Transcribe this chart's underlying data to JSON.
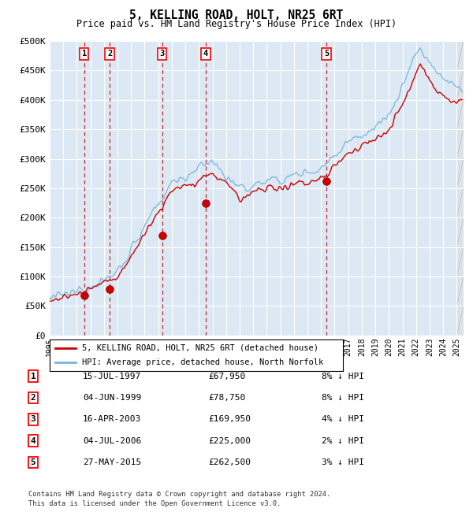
{
  "title": "5, KELLING ROAD, HOLT, NR25 6RT",
  "subtitle": "Price paid vs. HM Land Registry's House Price Index (HPI)",
  "hpi_label": "HPI: Average price, detached house, North Norfolk",
  "property_label": "5, KELLING ROAD, HOLT, NR25 6RT (detached house)",
  "footer_line1": "Contains HM Land Registry data © Crown copyright and database right 2024.",
  "footer_line2": "This data is licensed under the Open Government Licence v3.0.",
  "transactions": [
    {
      "num": 1,
      "date": "15-JUL-1997",
      "price": 67950,
      "year": 1997.54,
      "hpi_pct": "8% ↓ HPI"
    },
    {
      "num": 2,
      "date": "04-JUN-1999",
      "price": 78750,
      "year": 1999.42,
      "hpi_pct": "8% ↓ HPI"
    },
    {
      "num": 3,
      "date": "16-APR-2003",
      "price": 169950,
      "year": 2003.29,
      "hpi_pct": "4% ↓ HPI"
    },
    {
      "num": 4,
      "date": "04-JUL-2006",
      "price": 225000,
      "year": 2006.51,
      "hpi_pct": "2% ↓ HPI"
    },
    {
      "num": 5,
      "date": "27-MAY-2015",
      "price": 262500,
      "year": 2015.4,
      "hpi_pct": "3% ↓ HPI"
    }
  ],
  "hpi_color": "#7ab4d8",
  "property_color": "#cc0000",
  "dashed_line_color": "#cc0000",
  "background_chart": "#dce9f5",
  "background_fig": "#ffffff",
  "grid_color": "#ffffff",
  "ylim": [
    0,
    500000
  ],
  "xlim_start": 1995.0,
  "xlim_end": 2025.5,
  "yticks": [
    0,
    50000,
    100000,
    150000,
    200000,
    250000,
    300000,
    350000,
    400000,
    450000,
    500000
  ],
  "xticks": [
    1995,
    1996,
    1997,
    1998,
    1999,
    2000,
    2001,
    2002,
    2003,
    2004,
    2005,
    2006,
    2007,
    2008,
    2009,
    2010,
    2011,
    2012,
    2013,
    2014,
    2015,
    2016,
    2017,
    2018,
    2019,
    2020,
    2021,
    2022,
    2023,
    2024,
    2025
  ]
}
